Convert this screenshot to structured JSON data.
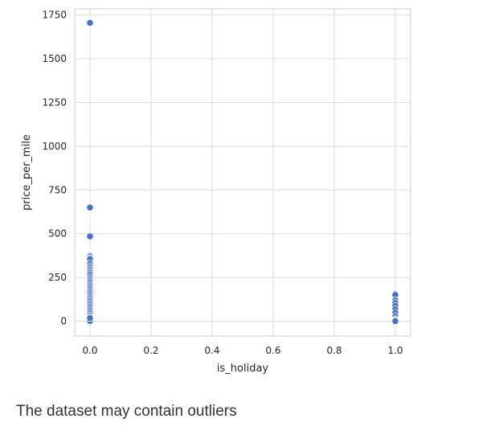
{
  "chart_data": {
    "type": "scatter",
    "title": "",
    "xlabel": "is_holiday",
    "ylabel": "price_per_mile",
    "xlim": [
      -0.05,
      1.05
    ],
    "ylim": [
      -85,
      1785
    ],
    "xticks": [
      0.0,
      0.2,
      0.4,
      0.6,
      0.8,
      1.0
    ],
    "xtick_labels": [
      "0.0",
      "0.2",
      "0.4",
      "0.6",
      "0.8",
      "1.0"
    ],
    "yticks": [
      0,
      250,
      500,
      750,
      1000,
      1250,
      1500,
      1750
    ],
    "ytick_labels": [
      "0",
      "250",
      "500",
      "750",
      "1000",
      "1250",
      "1500",
      "1750"
    ],
    "grid": true,
    "marker_color": "#4472c4",
    "series": [
      {
        "x": [
          0,
          0,
          0,
          0,
          0,
          0,
          0,
          0,
          0,
          0,
          0,
          0,
          0,
          0,
          0,
          0,
          0,
          0,
          0,
          0,
          0,
          0,
          0,
          0,
          0,
          0,
          0,
          0,
          0,
          0,
          0,
          0,
          0,
          0,
          0,
          0,
          0,
          0,
          0,
          0,
          0,
          0,
          0,
          0,
          0,
          0,
          0,
          0,
          0,
          0,
          0,
          0,
          0,
          0,
          0,
          0,
          0,
          0,
          0,
          0,
          0,
          0,
          0,
          0,
          0,
          0,
          0,
          0,
          0,
          0,
          0,
          0,
          0,
          0,
          0,
          0,
          0,
          0,
          0,
          0,
          0,
          0,
          0,
          0,
          0,
          0,
          0,
          0,
          0,
          0,
          0,
          0,
          0,
          0,
          0,
          0,
          0,
          0,
          0,
          0,
          0,
          0,
          0,
          0,
          0,
          0,
          1,
          1,
          1,
          1,
          1,
          1,
          1,
          1,
          1,
          1,
          1,
          1,
          1,
          1,
          1,
          1,
          1,
          1,
          1,
          1,
          1,
          1,
          1,
          1,
          1,
          1,
          1,
          1,
          1,
          1,
          1,
          1,
          1,
          1,
          1,
          1,
          1,
          1,
          1,
          1,
          1
        ],
        "y": [
          1705,
          650,
          485,
          375,
          345,
          335,
          325,
          255,
          240,
          230,
          220,
          200,
          190,
          160,
          150,
          130,
          110,
          100,
          85,
          75,
          65,
          50,
          40,
          30,
          20,
          10,
          5,
          370,
          360,
          350,
          340,
          320,
          310,
          300,
          290,
          280,
          270,
          260,
          250,
          245,
          235,
          225,
          215,
          210,
          205,
          195,
          185,
          180,
          175,
          170,
          165,
          155,
          145,
          140,
          135,
          125,
          120,
          115,
          105,
          95,
          90,
          80,
          70,
          60,
          55,
          45,
          35,
          25,
          15,
          12,
          8,
          3,
          1,
          355,
          330,
          315,
          305,
          295,
          285,
          275,
          265,
          252,
          242,
          232,
          222,
          212,
          202,
          192,
          182,
          172,
          162,
          152,
          142,
          132,
          122,
          112,
          102,
          92,
          82,
          72,
          62,
          52,
          42,
          32,
          22,
          18,
          160,
          135,
          115,
          100,
          90,
          80,
          70,
          60,
          50,
          40,
          30,
          20,
          10,
          5,
          2,
          155,
          145,
          125,
          110,
          95,
          85,
          75,
          65,
          55,
          45,
          35,
          25,
          15,
          8,
          4,
          150,
          120,
          105,
          88,
          68,
          48,
          28,
          12,
          6,
          3,
          1
        ]
      }
    ]
  },
  "caption": "The dataset may contain outliers"
}
